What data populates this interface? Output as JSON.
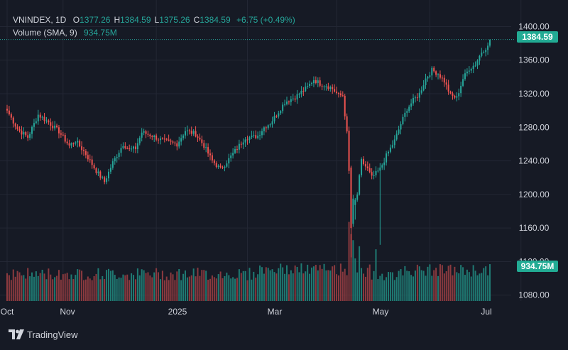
{
  "header": {
    "symbol": "VNINDEX, 1D",
    "ohlc": [
      {
        "label": "O",
        "value": "1377.26"
      },
      {
        "label": "H",
        "value": "1384.59"
      },
      {
        "label": "L",
        "value": "1375.26"
      },
      {
        "label": "C",
        "value": "1384.59"
      }
    ],
    "change": "+6.75 (+0.49%)",
    "volume_label": "Volume (SMA, 9)",
    "volume_value": "934.75M"
  },
  "price_tag": "1384.59",
  "volume_tag": "934.75M",
  "footer": {
    "brand": "TradingView"
  },
  "colors": {
    "background": "#161a25",
    "up": "#26a69a",
    "down": "#ef5350",
    "volume_up": "#1f7a73",
    "volume_down": "#8b3a3f",
    "grid": "#232734",
    "text": "#d1d4dc",
    "tag": "#22ab94"
  },
  "chart_data": {
    "type": "candlestick",
    "y_axis": {
      "position": "right",
      "ticks": [
        "1400.00",
        "1360.00",
        "1320.00",
        "1280.00",
        "1240.00",
        "1200.00",
        "1160.00",
        "1120.00",
        "1080.00"
      ],
      "range": [
        1073,
        1408
      ]
    },
    "x_axis": {
      "labels": [
        "Oct",
        "Nov",
        "2025",
        "Mar",
        "May",
        "Jul"
      ]
    },
    "grid": true,
    "last_price": 1384.59,
    "series": [
      {
        "name": "Price",
        "keypoints": [
          [
            0,
            1300
          ],
          [
            5,
            1278
          ],
          [
            10,
            1268
          ],
          [
            15,
            1295
          ],
          [
            20,
            1286
          ],
          [
            25,
            1275
          ],
          [
            30,
            1258
          ],
          [
            33,
            1264
          ],
          [
            38,
            1248
          ],
          [
            43,
            1228
          ],
          [
            47,
            1215
          ],
          [
            51,
            1238
          ],
          [
            56,
            1260
          ],
          [
            59,
            1253
          ],
          [
            62,
            1255
          ],
          [
            65,
            1274
          ],
          [
            70,
            1270
          ],
          [
            74,
            1265
          ],
          [
            78,
            1262
          ],
          [
            82,
            1260
          ],
          [
            86,
            1276
          ],
          [
            91,
            1272
          ],
          [
            95,
            1258
          ],
          [
            99,
            1240
          ],
          [
            103,
            1230
          ],
          [
            107,
            1242
          ],
          [
            111,
            1255
          ],
          [
            115,
            1268
          ],
          [
            118,
            1268
          ],
          [
            121,
            1270
          ],
          [
            124,
            1280
          ],
          [
            127,
            1285
          ],
          [
            130,
            1295
          ],
          [
            134,
            1310
          ],
          [
            139,
            1316
          ],
          [
            142,
            1322
          ],
          [
            145,
            1328
          ],
          [
            148,
            1337
          ],
          [
            151,
            1332
          ],
          [
            154,
            1330
          ],
          [
            157,
            1326
          ],
          [
            160,
            1318
          ],
          [
            162,
            1318
          ],
          [
            165,
            1250
          ],
          [
            167,
            1185
          ],
          [
            169,
            1200
          ],
          [
            171,
            1240
          ],
          [
            174,
            1230
          ],
          [
            176,
            1220
          ],
          [
            178,
            1225
          ],
          [
            180,
            1230
          ],
          [
            183,
            1246
          ],
          [
            187,
            1264
          ],
          [
            190,
            1284
          ],
          [
            193,
            1302
          ],
          [
            196,
            1312
          ],
          [
            199,
            1320
          ],
          [
            202,
            1338
          ],
          [
            205,
            1348
          ],
          [
            208,
            1344
          ],
          [
            211,
            1335
          ],
          [
            214,
            1318
          ],
          [
            217,
            1315
          ],
          [
            220,
            1338
          ],
          [
            223,
            1350
          ],
          [
            226,
            1355
          ],
          [
            229,
            1370
          ],
          [
            232,
            1377.26
          ],
          [
            233,
            1384.59
          ]
        ]
      },
      {
        "name": "Volume",
        "avg_millions": 934.75,
        "scale_max_millions": 2800,
        "spike_days": [
          [
            165,
            2600
          ],
          [
            166,
            2200
          ],
          [
            167,
            2000
          ],
          [
            168,
            1400
          ],
          [
            170,
            1800
          ],
          [
            172,
            900
          ],
          [
            175,
            1200
          ],
          [
            178,
            1700
          ]
        ]
      }
    ]
  }
}
